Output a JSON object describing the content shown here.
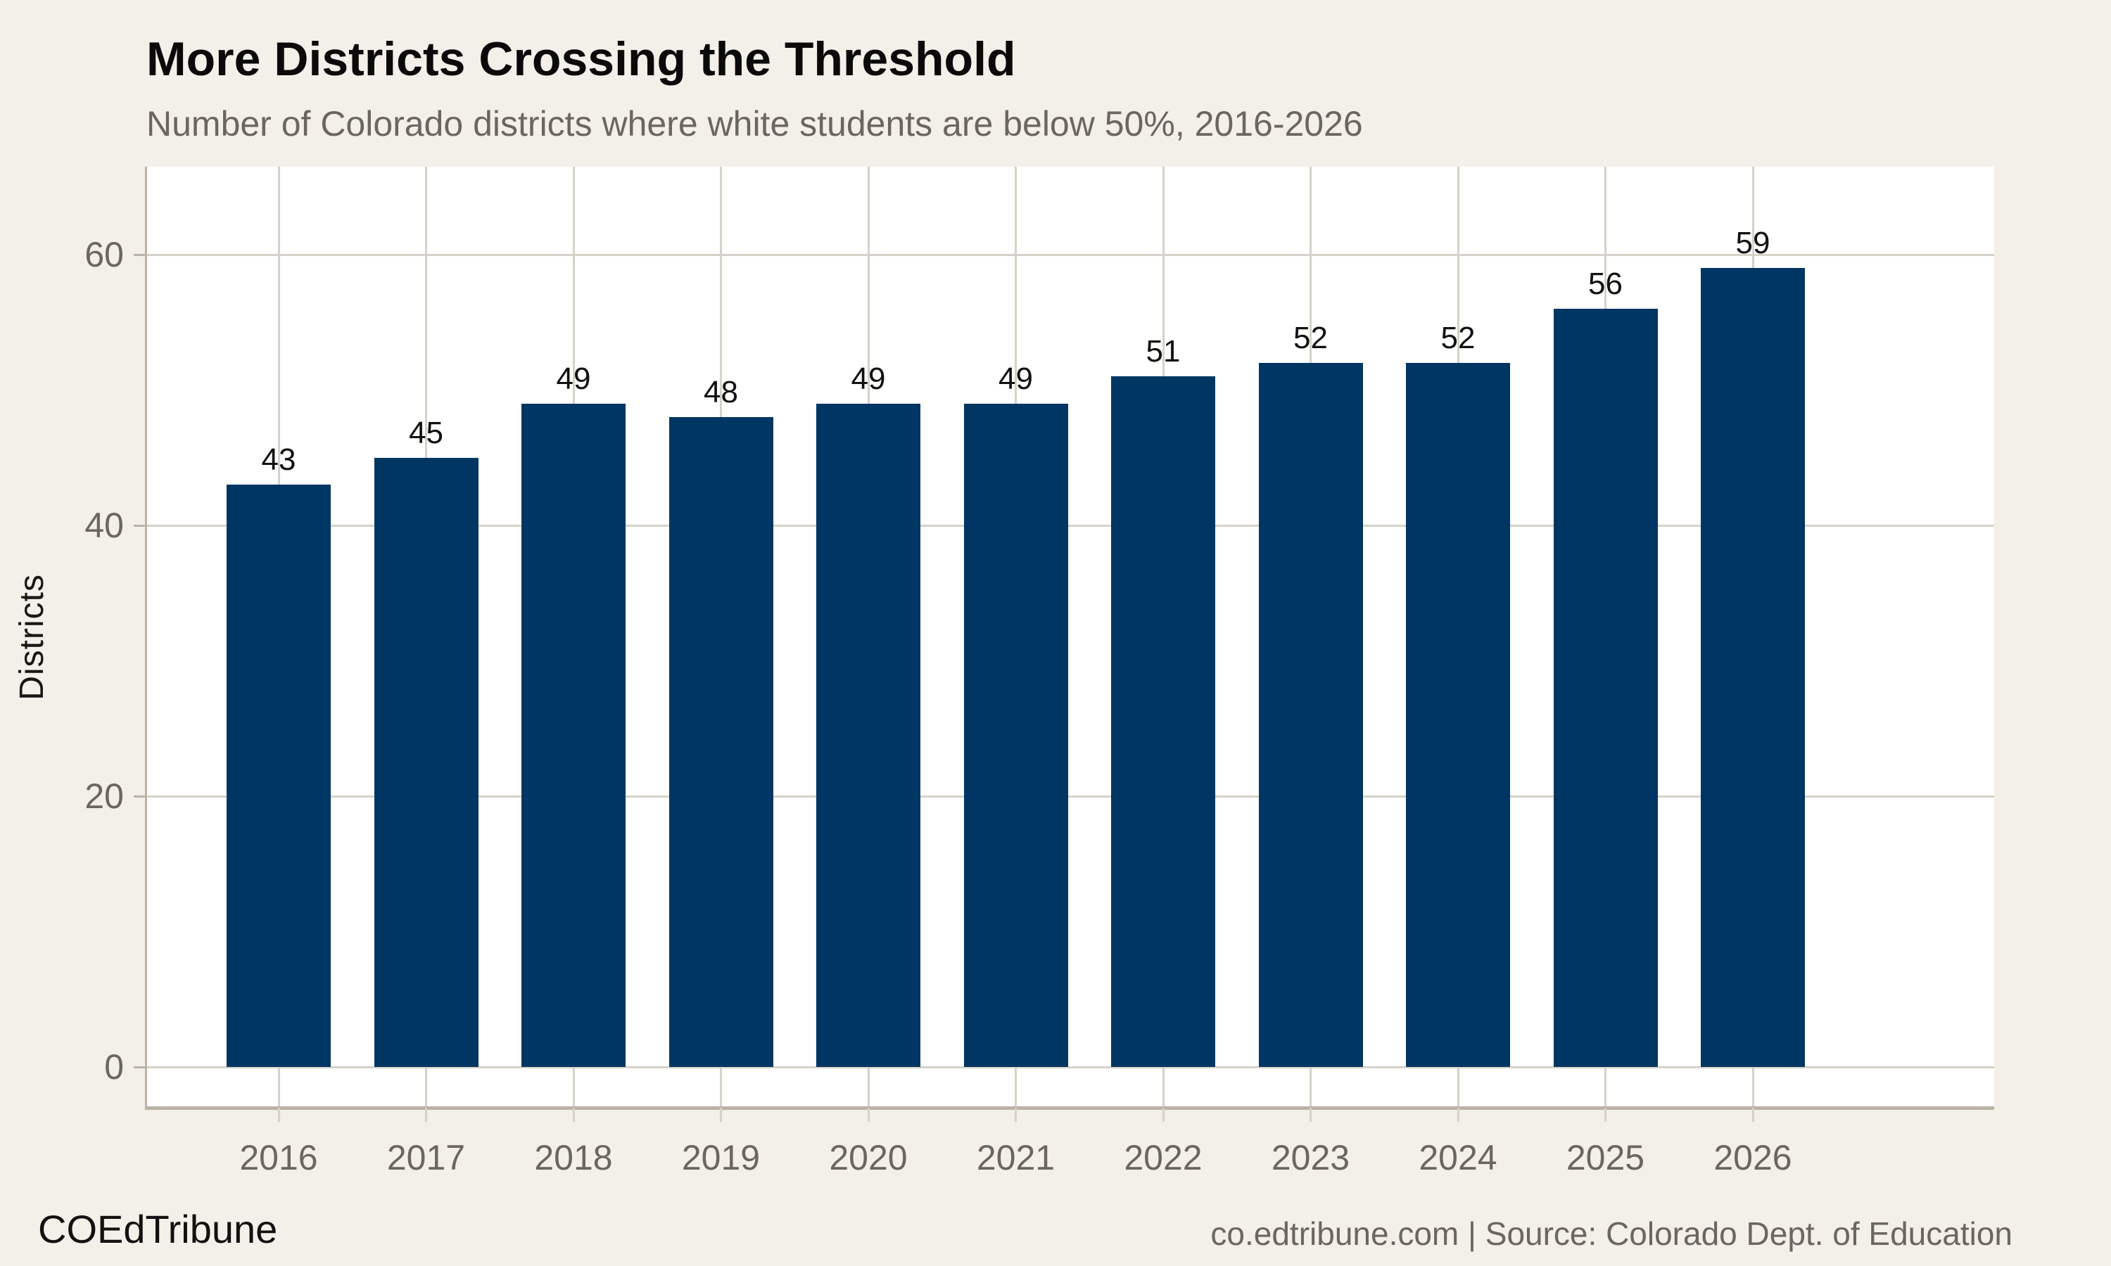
{
  "header": {
    "title": "More Districts Crossing the Threshold",
    "subtitle": "Number of Colorado districts where white students are below 50%, 2016-2026"
  },
  "footer": {
    "brand": "COEdTribune",
    "attribution": "co.edtribune.com | Source: Colorado Dept. of Education"
  },
  "colors": {
    "background": "#f3efe9",
    "panel": "#ffffff",
    "bar": "#003663",
    "gridline": "#d7d2c8",
    "axis": "#b9b3a8",
    "text_dark": "#141414",
    "text_gray": "#6b675f"
  },
  "chart_data": {
    "type": "bar",
    "title": "More Districts Crossing the Threshold",
    "subtitle": "Number of Colorado districts where white students are below 50%, 2016-2026",
    "categories": [
      "2016",
      "2017",
      "2018",
      "2019",
      "2020",
      "2021",
      "2022",
      "2023",
      "2024",
      "2025",
      "2026"
    ],
    "values": [
      43,
      45,
      49,
      48,
      49,
      49,
      51,
      52,
      52,
      56,
      59
    ],
    "xlabel": "",
    "ylabel": "Districts",
    "yticks": [
      0,
      20,
      40,
      60
    ],
    "ylim": [
      -3,
      66.5
    ],
    "grid": "both",
    "legend": "none",
    "bar_labels": true
  }
}
